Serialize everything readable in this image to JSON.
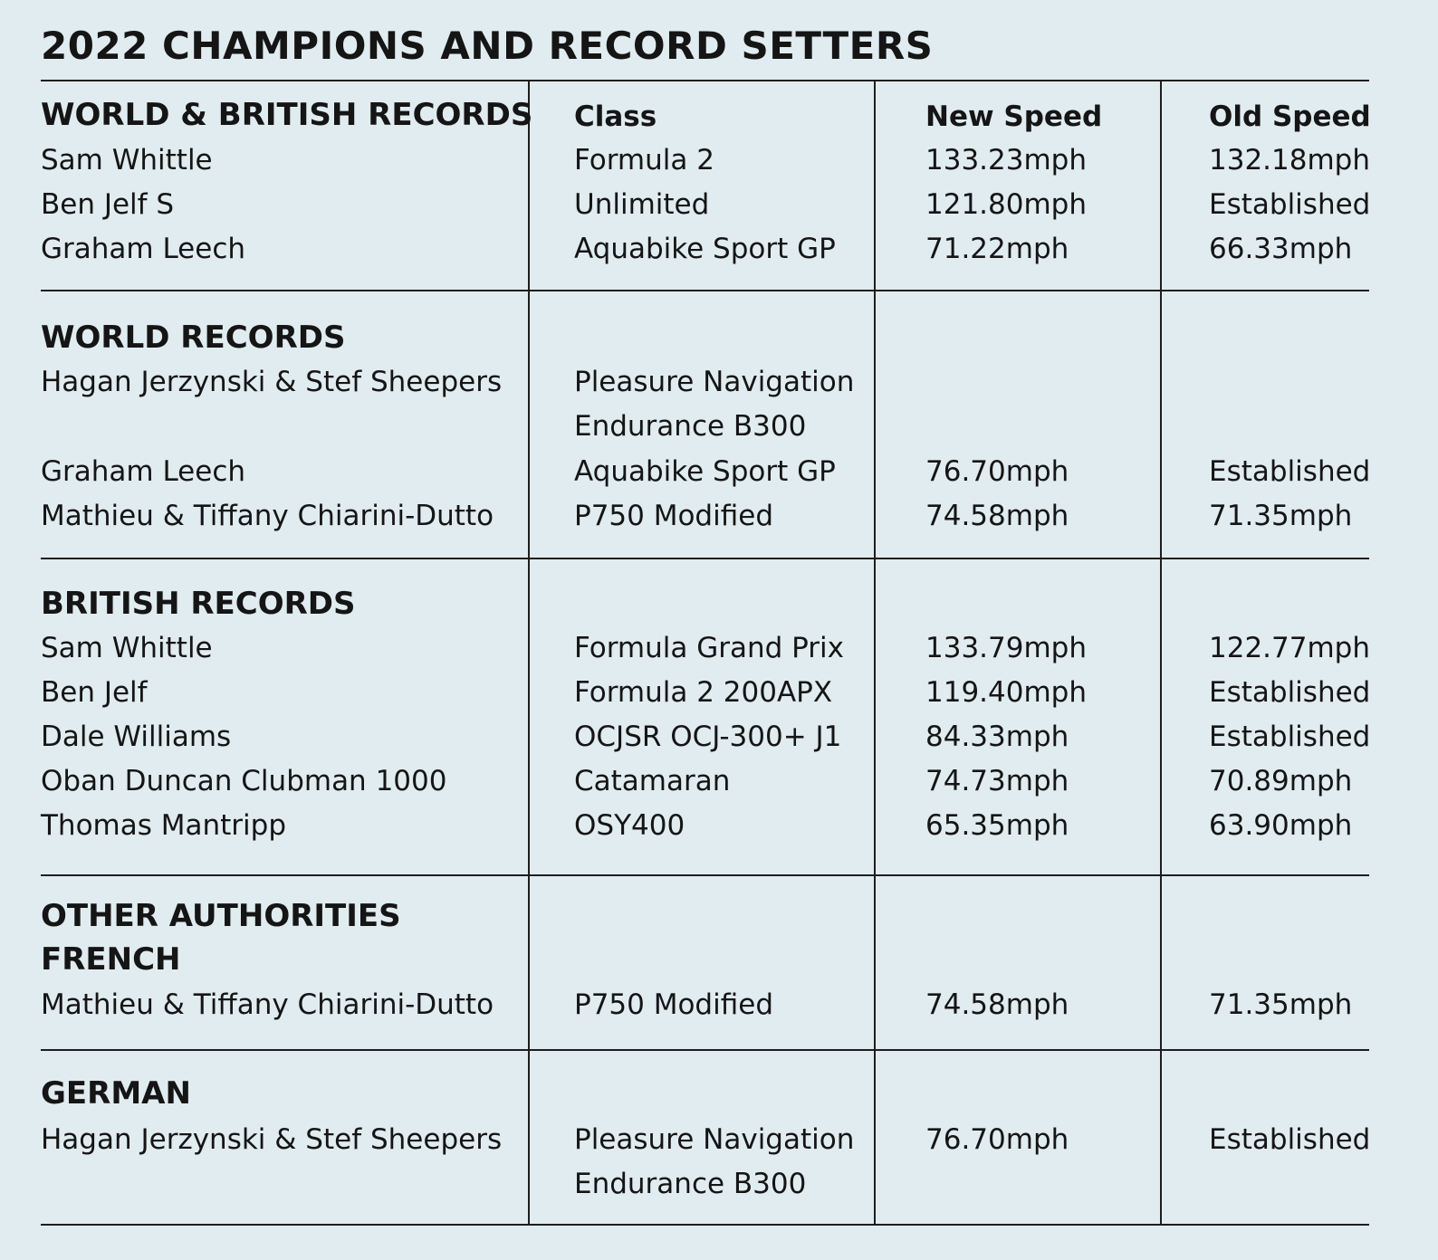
{
  "title": "2022 CHAMPIONS AND RECORD SETTERS",
  "columns": {
    "class": "Class",
    "new_speed": "New Speed",
    "old_speed": "Old Speed"
  },
  "sections": [
    {
      "heading": "WORLD & BRITISH RECORDS",
      "rows": [
        {
          "name": "Sam Whittle",
          "class": "Formula 2",
          "new": "133.23mph",
          "old": "132.18mph"
        },
        {
          "name": "Ben Jelf S",
          "class": "Unlimited",
          "new": "121.80mph",
          "old": "Established"
        },
        {
          "name": "Graham Leech",
          "class": "Aquabike Sport GP",
          "new": "71.22mph",
          "old": "66.33mph"
        }
      ]
    },
    {
      "heading": "WORLD RECORDS",
      "rows": [
        {
          "name": "Hagan Jerzynski & Stef Sheepers",
          "class": "Pleasure Navigation",
          "class2": "Endurance B300",
          "new": "",
          "old": ""
        },
        {
          "name": "Graham Leech",
          "class": "Aquabike Sport GP",
          "new": "76.70mph",
          "old": "Established"
        },
        {
          "name": "Mathieu & Tiffany Chiarini-Dutto",
          "class": "P750 Modified",
          "new": "74.58mph",
          "old": "71.35mph"
        }
      ]
    },
    {
      "heading": "BRITISH RECORDS",
      "rows": [
        {
          "name": "Sam Whittle",
          "class": "Formula Grand Prix",
          "new": "133.79mph",
          "old": "122.77mph"
        },
        {
          "name": "Ben Jelf",
          "class": "Formula 2 200APX",
          "new": "119.40mph",
          "old": "Established"
        },
        {
          "name": "Dale Williams",
          "class": "OCJSR OCJ-300+ J1",
          "new": "84.33mph",
          "old": "Established"
        },
        {
          "name": "Oban Duncan Clubman 1000",
          "class": "Catamaran",
          "new": "74.73mph",
          "old": "70.89mph"
        },
        {
          "name": "Thomas Mantripp",
          "class": "OSY400",
          "new": "65.35mph",
          "old": "63.90mph"
        }
      ]
    },
    {
      "heading": "OTHER AUTHORITIES",
      "heading2": "FRENCH",
      "rows": [
        {
          "name": "Mathieu & Tiffany Chiarini-Dutto",
          "class": "P750 Modified",
          "new": "74.58mph",
          "old": "71.35mph"
        }
      ]
    },
    {
      "heading": "GERMAN",
      "rows": [
        {
          "name": "Hagan Jerzynski & Stef Sheepers",
          "class": "Pleasure Navigation",
          "class2": "Endurance B300",
          "new": "76.70mph",
          "old": "Established"
        }
      ]
    }
  ]
}
